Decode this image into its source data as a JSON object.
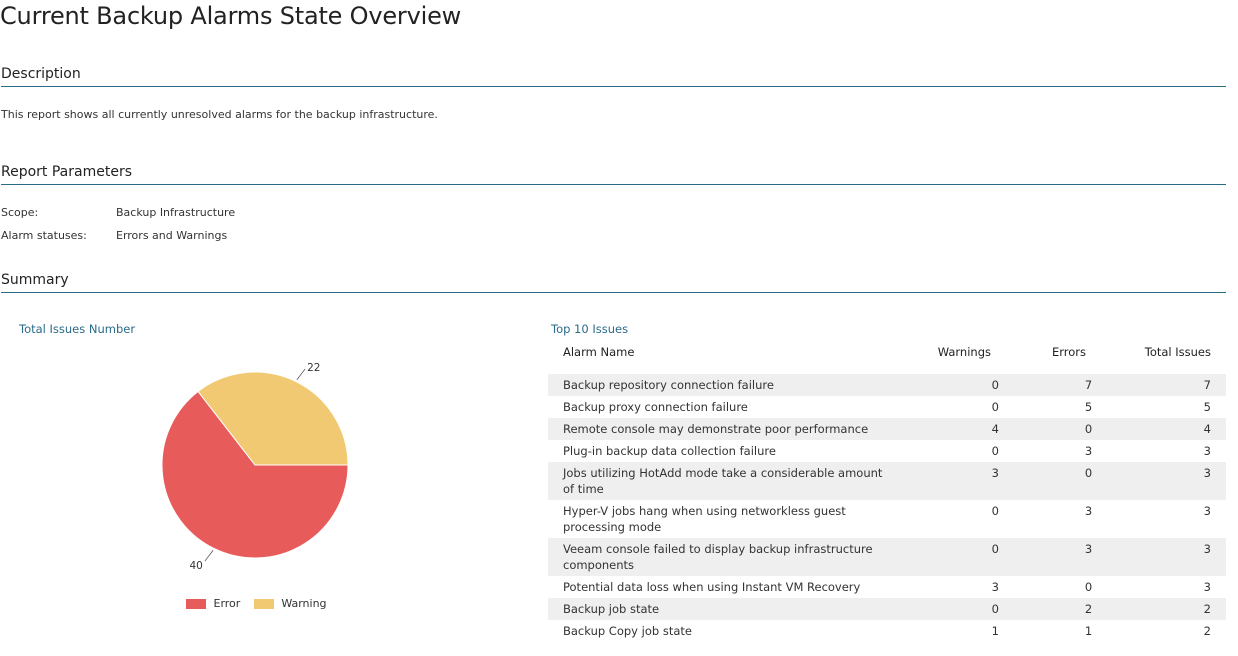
{
  "page": {
    "title": "Current Backup Alarms State Overview"
  },
  "description": {
    "heading": "Description",
    "text": "This report shows all currently unresolved alarms for the backup infrastructure."
  },
  "parameters": {
    "heading": "Report Parameters",
    "items": [
      {
        "label": "Scope:",
        "value": "Backup Infrastructure"
      },
      {
        "label": "Alarm statuses:",
        "value": "Errors and Warnings"
      }
    ]
  },
  "summary": {
    "heading": "Summary",
    "chart_title": "Total Issues Number",
    "table_title": "Top 10 Issues",
    "legend": [
      {
        "label": "Error",
        "color": "#e85b5b"
      },
      {
        "label": "Warning",
        "color": "#f1c973"
      }
    ]
  },
  "chart_data": {
    "type": "pie",
    "title": "Total Issues Number",
    "slices": [
      {
        "name": "Error",
        "value": 40,
        "color": "#e85b5b"
      },
      {
        "name": "Warning",
        "value": 22,
        "color": "#f1c973"
      }
    ]
  },
  "table": {
    "headers": [
      "Alarm Name",
      "Warnings",
      "Errors",
      "Total Issues"
    ],
    "rows": [
      [
        "Backup repository connection failure",
        "0",
        "7",
        "7"
      ],
      [
        "Backup proxy connection failure",
        "0",
        "5",
        "5"
      ],
      [
        "Remote console may demonstrate poor performance",
        "4",
        "0",
        "4"
      ],
      [
        "Plug-in backup data collection failure",
        "0",
        "3",
        "3"
      ],
      [
        "Jobs utilizing HotAdd mode take a considerable amount of time",
        "3",
        "0",
        "3"
      ],
      [
        "Hyper-V jobs hang when using networkless guest processing mode",
        "0",
        "3",
        "3"
      ],
      [
        "Veeam console failed to display backup infrastructure components",
        "0",
        "3",
        "3"
      ],
      [
        "Potential data loss when using Instant VM Recovery",
        "3",
        "0",
        "3"
      ],
      [
        "Backup job state",
        "0",
        "2",
        "2"
      ],
      [
        "Backup Copy job state",
        "1",
        "1",
        "2"
      ]
    ]
  }
}
